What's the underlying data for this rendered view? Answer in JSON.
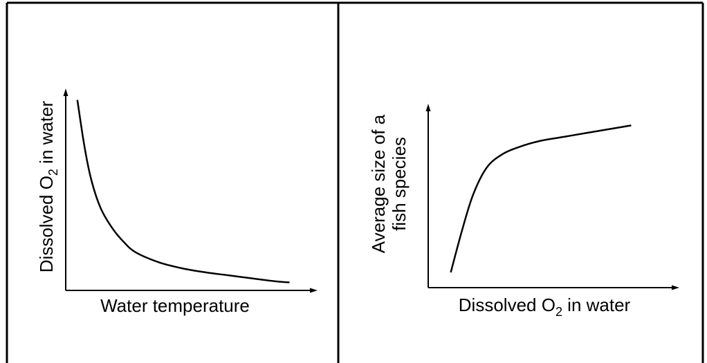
{
  "colors": {
    "background": "#ffffff",
    "ink": "#000000"
  },
  "chart_data": [
    {
      "type": "line",
      "title": "",
      "xlabel": "Water temperature",
      "ylabel": {
        "prefix": "Dissolved O",
        "subscript": "2",
        "suffix": " in water"
      },
      "axis_ticks": "none",
      "grid": false,
      "legend": "none",
      "xlim": [
        0,
        100
      ],
      "ylim": [
        0,
        100
      ],
      "series": [
        {
          "x": [
            5,
            8,
            11,
            15,
            20,
            25,
            30,
            40,
            50,
            60,
            70,
            80,
            90,
            96
          ],
          "y": [
            95,
            72,
            55,
            41,
            31,
            24,
            19,
            14,
            11,
            9,
            7.5,
            6,
            4.5,
            4
          ]
        }
      ]
    },
    {
      "type": "line",
      "title": "",
      "xlabel": {
        "prefix": "Dissolved O",
        "subscript": "2",
        "suffix": " in water"
      },
      "ylabel": {
        "line1": "Average size of a",
        "line2": "fish species"
      },
      "axis_ticks": "none",
      "grid": false,
      "legend": "none",
      "xlim": [
        0,
        100
      ],
      "ylim": [
        0,
        100
      ],
      "series": [
        {
          "x": [
            10,
            15,
            20,
            26,
            33,
            41,
            50,
            60,
            70,
            80,
            90
          ],
          "y": [
            8,
            30,
            49,
            63,
            70,
            74,
            77,
            79,
            81,
            83,
            85
          ]
        }
      ]
    }
  ]
}
